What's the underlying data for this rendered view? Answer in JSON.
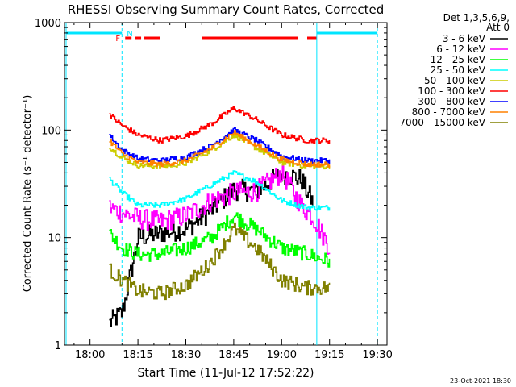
{
  "chart_data": {
    "type": "line",
    "title": "RHESSI Observing Summary Count Rates, Corrected",
    "xlabel": "Start Time (11-Jul-12 17:52:22)",
    "ylabel": "Corrected Count Rate (s⁻¹ detector⁻¹)",
    "y_scale": "log",
    "ylim": [
      1,
      1000
    ],
    "xlim": [
      "17:52",
      "19:33"
    ],
    "x_ticks": [
      "18:00",
      "18:15",
      "18:30",
      "18:45",
      "19:00",
      "19:15",
      "19:30"
    ],
    "y_ticks": [
      "1",
      "10",
      "100",
      "1000"
    ],
    "legend_position": "right",
    "legend_header": [
      "Det 1,3,5,6,9,",
      "Att 0"
    ],
    "footer": "23-Oct-2021 18:30",
    "flags": {
      "night_label": "N",
      "flare_label": "F",
      "night_color": "#00e5ff",
      "flare_color": "#ff0000"
    },
    "series": [
      {
        "name": "3 - 6 keV",
        "color": "#000000",
        "points": [
          [
            "18:06",
            1.6
          ],
          [
            "18:10",
            2.0
          ],
          [
            "18:15",
            10
          ],
          [
            "18:22",
            11
          ],
          [
            "18:30",
            12
          ],
          [
            "18:38",
            18
          ],
          [
            "18:45",
            28
          ],
          [
            "18:52",
            27
          ],
          [
            "19:00",
            40
          ],
          [
            "19:06",
            35
          ],
          [
            "19:10",
            20
          ]
        ]
      },
      {
        "name": "6 - 12 keV",
        "color": "#ff00ff",
        "points": [
          [
            "18:06",
            19
          ],
          [
            "18:10",
            17
          ],
          [
            "18:15",
            15
          ],
          [
            "18:22",
            14
          ],
          [
            "18:30",
            16
          ],
          [
            "18:38",
            22
          ],
          [
            "18:45",
            26
          ],
          [
            "18:52",
            27
          ],
          [
            "19:00",
            40
          ],
          [
            "19:06",
            20
          ],
          [
            "19:10",
            15
          ],
          [
            "19:15",
            8
          ]
        ]
      },
      {
        "name": "12 - 25 keV",
        "color": "#00ff00",
        "points": [
          [
            "18:06",
            11
          ],
          [
            "18:10",
            8
          ],
          [
            "18:15",
            7
          ],
          [
            "18:22",
            7
          ],
          [
            "18:30",
            8
          ],
          [
            "18:38",
            10
          ],
          [
            "18:45",
            16
          ],
          [
            "18:52",
            12
          ],
          [
            "19:00",
            8
          ],
          [
            "19:08",
            7
          ],
          [
            "19:15",
            6
          ]
        ]
      },
      {
        "name": "25 - 50 keV",
        "color": "#00ffff",
        "points": [
          [
            "18:06",
            35
          ],
          [
            "18:10",
            26
          ],
          [
            "18:15",
            20
          ],
          [
            "18:22",
            20
          ],
          [
            "18:30",
            23
          ],
          [
            "18:38",
            31
          ],
          [
            "18:45",
            40
          ],
          [
            "18:52",
            33
          ],
          [
            "19:00",
            22
          ],
          [
            "19:08",
            19
          ],
          [
            "19:15",
            19
          ]
        ]
      },
      {
        "name": "50 - 100 keV",
        "color": "#cccc00",
        "points": [
          [
            "18:06",
            70
          ],
          [
            "18:10",
            55
          ],
          [
            "18:15",
            47
          ],
          [
            "18:22",
            46
          ],
          [
            "18:30",
            49
          ],
          [
            "18:38",
            65
          ],
          [
            "18:45",
            90
          ],
          [
            "18:52",
            68
          ],
          [
            "19:00",
            50
          ],
          [
            "19:08",
            46
          ],
          [
            "19:15",
            46
          ]
        ]
      },
      {
        "name": "100 - 300 keV",
        "color": "#ff0000",
        "points": [
          [
            "18:06",
            140
          ],
          [
            "18:10",
            110
          ],
          [
            "18:15",
            90
          ],
          [
            "18:22",
            80
          ],
          [
            "18:30",
            88
          ],
          [
            "18:38",
            115
          ],
          [
            "18:45",
            160
          ],
          [
            "18:52",
            125
          ],
          [
            "19:00",
            90
          ],
          [
            "19:08",
            80
          ],
          [
            "19:15",
            80
          ]
        ]
      },
      {
        "name": "300 - 800 keV",
        "color": "#0000ff",
        "points": [
          [
            "18:06",
            90
          ],
          [
            "18:10",
            65
          ],
          [
            "18:15",
            54
          ],
          [
            "18:22",
            52
          ],
          [
            "18:30",
            56
          ],
          [
            "18:38",
            72
          ],
          [
            "18:45",
            100
          ],
          [
            "18:52",
            80
          ],
          [
            "19:00",
            57
          ],
          [
            "19:08",
            52
          ],
          [
            "19:15",
            52
          ]
        ]
      },
      {
        "name": "800 - 7000 keV",
        "color": "#ff8000",
        "points": [
          [
            "18:06",
            80
          ],
          [
            "18:10",
            60
          ],
          [
            "18:15",
            50
          ],
          [
            "18:22",
            48
          ],
          [
            "18:30",
            52
          ],
          [
            "18:38",
            68
          ],
          [
            "18:45",
            95
          ],
          [
            "18:52",
            72
          ],
          [
            "19:00",
            53
          ],
          [
            "19:08",
            48
          ],
          [
            "19:15",
            48
          ]
        ]
      },
      {
        "name": "7000 - 15000 keV",
        "color": "#808000",
        "points": [
          [
            "18:06",
            5
          ],
          [
            "18:10",
            4
          ],
          [
            "18:15",
            3.2
          ],
          [
            "18:22",
            3.0
          ],
          [
            "18:30",
            3.6
          ],
          [
            "18:38",
            6
          ],
          [
            "18:45",
            12
          ],
          [
            "18:52",
            8
          ],
          [
            "19:00",
            4
          ],
          [
            "19:08",
            3.4
          ],
          [
            "19:15",
            3.4
          ]
        ]
      }
    ]
  }
}
